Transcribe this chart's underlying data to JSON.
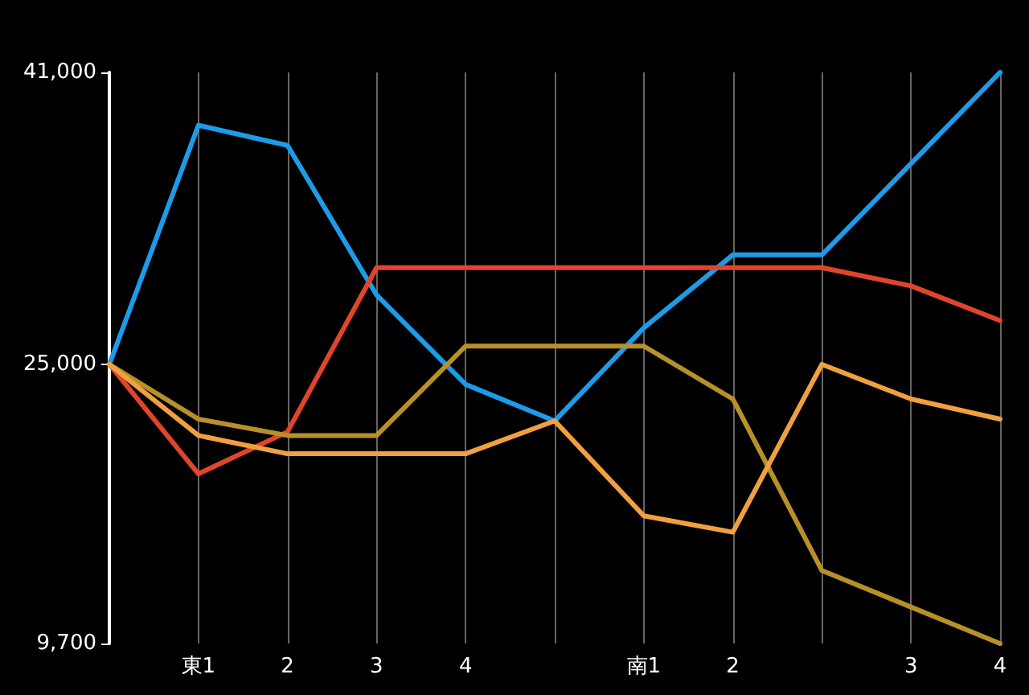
{
  "chart_data": {
    "type": "line",
    "categories": [
      null,
      "東1",
      "2",
      "3",
      "4",
      null,
      "南1",
      "2",
      null,
      "3",
      "4"
    ],
    "series": [
      {
        "color": "#1e9be8",
        "values": [
          25000,
          38100,
          37000,
          28800,
          23900,
          21900,
          27000,
          31000,
          31000,
          36000,
          41000
        ]
      },
      {
        "color": "#e0452a",
        "values": [
          25000,
          19000,
          21300,
          30300,
          30300,
          30300,
          30300,
          30300,
          30300,
          29300,
          27400
        ]
      },
      {
        "color": "#b8902a",
        "values": [
          25000,
          22000,
          21100,
          21100,
          26000,
          26000,
          26000,
          23100,
          13700,
          11700,
          9700
        ]
      },
      {
        "color": "#f0a040",
        "values": [
          25000,
          21100,
          20100,
          20100,
          20100,
          21900,
          16700,
          15800,
          25000,
          23100,
          22000
        ]
      }
    ],
    "ylim": [
      9700,
      41000
    ],
    "yticks": [
      {
        "value": 9700,
        "label": "9,700"
      },
      {
        "value": 25000,
        "label": "25,000"
      },
      {
        "value": 41000,
        "label": "41,000"
      }
    ],
    "grid": "x",
    "marker": "none",
    "line_style": "solid"
  }
}
